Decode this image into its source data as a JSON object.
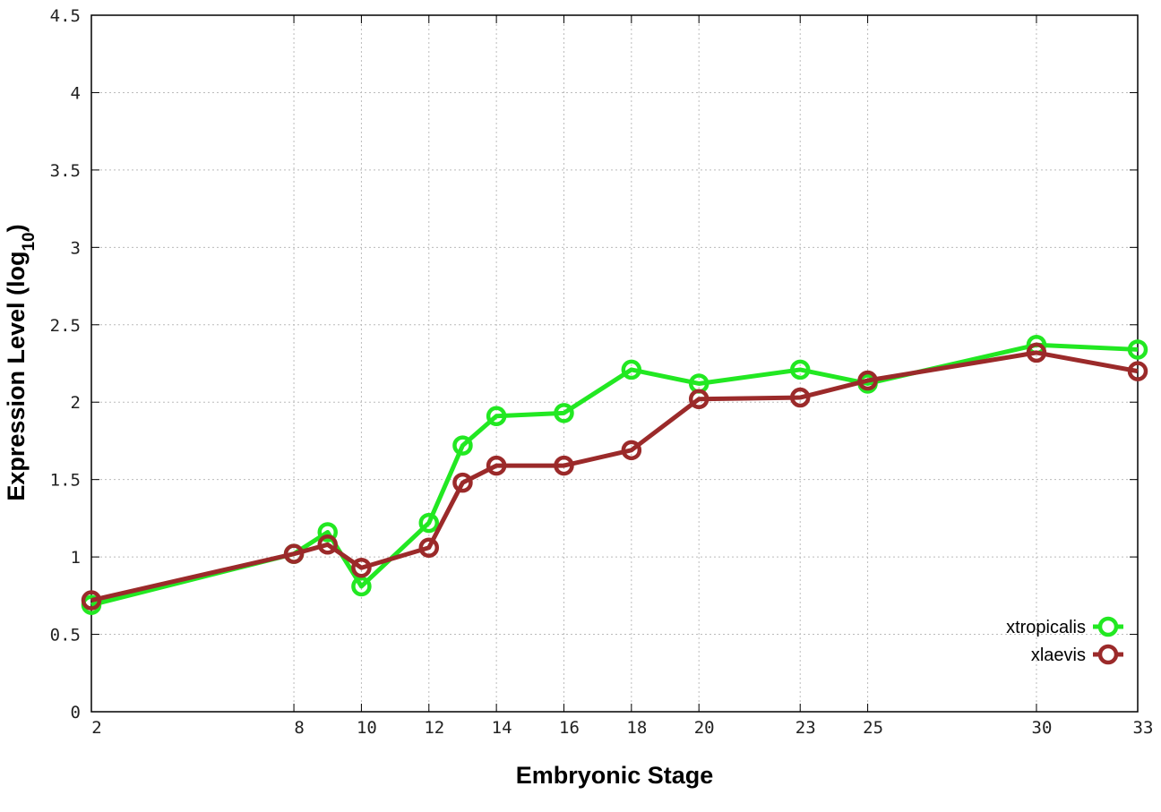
{
  "chart_data": {
    "type": "line",
    "title": "",
    "xlabel": "Embryonic Stage",
    "ylabel": "Expression Level (log",
    "ylabel_subscript": "10",
    "ylabel_suffix": ")",
    "xlim": [
      2,
      33
    ],
    "ylim": [
      0,
      4.5
    ],
    "x_ticks": [
      2,
      8,
      10,
      12,
      14,
      16,
      18,
      20,
      23,
      25,
      30,
      33
    ],
    "x_tick_labels": [
      "2",
      "8",
      "10",
      "12",
      "14",
      "16",
      "18",
      "20",
      "23",
      "25",
      "30",
      "33"
    ],
    "y_ticks": [
      0,
      0.5,
      1,
      1.5,
      2,
      2.5,
      3,
      3.5,
      4,
      4.5
    ],
    "y_tick_labels": [
      "0",
      "0.5",
      "1",
      "1.5",
      "2",
      "2.5",
      "3",
      "3.5",
      "4",
      "4.5"
    ],
    "grid": true,
    "legend_position": "bottom-right",
    "x": [
      2,
      8,
      9,
      10,
      12,
      13,
      14,
      16,
      18,
      20,
      23,
      25,
      30,
      33
    ],
    "series": [
      {
        "name": "xtropicalis",
        "color": "#22e822",
        "values": [
          0.69,
          1.02,
          1.16,
          0.81,
          1.22,
          1.72,
          1.91,
          1.93,
          2.21,
          2.12,
          2.21,
          2.12,
          2.37,
          2.34
        ]
      },
      {
        "name": "xlaevis",
        "color": "#9b2a2a",
        "values": [
          0.72,
          1.02,
          1.08,
          0.93,
          1.06,
          1.48,
          1.59,
          1.59,
          1.69,
          2.02,
          2.03,
          2.14,
          2.32,
          2.2
        ]
      }
    ]
  }
}
